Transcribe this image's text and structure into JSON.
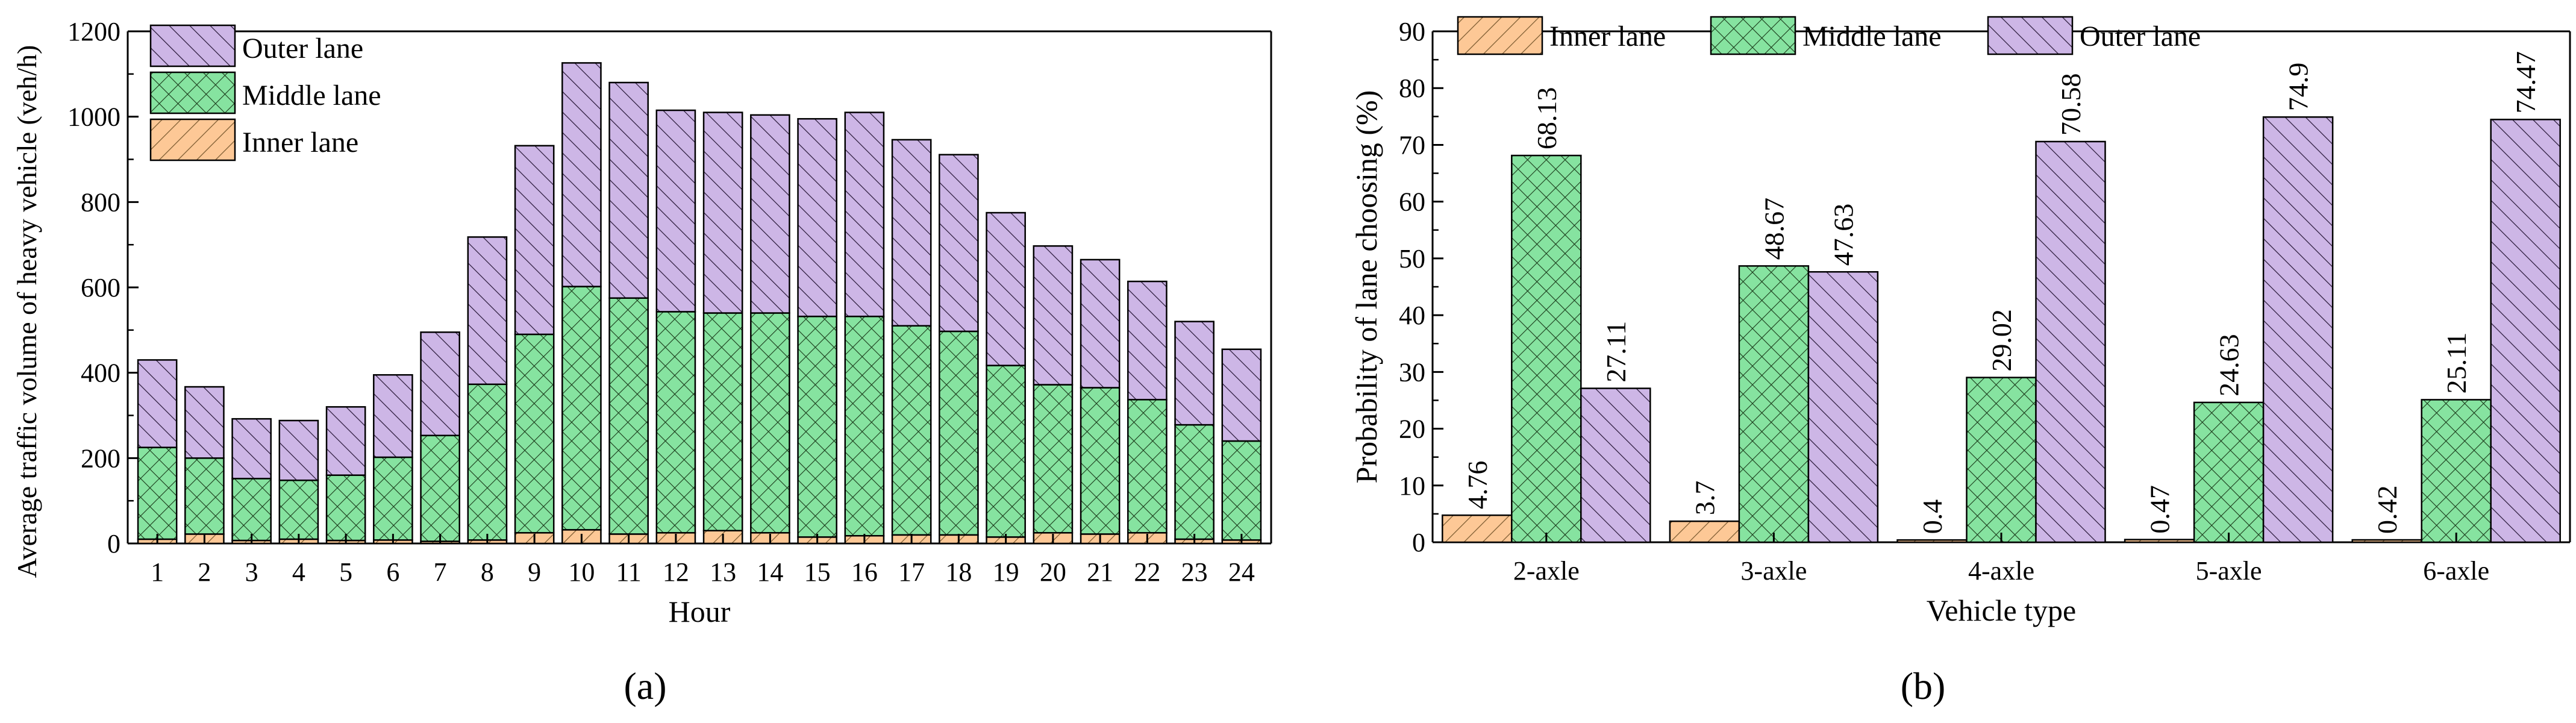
{
  "colors": {
    "inner": "#FDC896",
    "middle": "#86E3A0",
    "outer": "#CDB6E6",
    "stroke": "#000000",
    "axis": "#000000"
  },
  "chart_data": [
    {
      "type": "bar",
      "stacked": true,
      "panel_label": "(a)",
      "title": "",
      "xlabel": "Hour",
      "ylabel": "Average traffic volume of heavy vehicle (veh/h)",
      "ylim": [
        0,
        1200
      ],
      "yticks": [
        0,
        200,
        400,
        600,
        800,
        1000,
        1200
      ],
      "categories": [
        "1",
        "2",
        "3",
        "4",
        "5",
        "6",
        "7",
        "8",
        "9",
        "10",
        "11",
        "12",
        "13",
        "14",
        "15",
        "16",
        "17",
        "18",
        "19",
        "20",
        "21",
        "22",
        "23",
        "24"
      ],
      "legend_position": "top-left",
      "legend_order": [
        "Outer lane",
        "Middle lane",
        "Inner lane"
      ],
      "series": [
        {
          "name": "Inner lane",
          "key": "inner",
          "values": [
            10,
            22,
            7,
            10,
            7,
            8,
            5,
            8,
            25,
            32,
            22,
            25,
            30,
            25,
            15,
            18,
            20,
            20,
            15,
            25,
            22,
            25,
            10,
            8
          ]
        },
        {
          "name": "Middle lane",
          "key": "middle",
          "values": [
            215,
            178,
            145,
            138,
            153,
            194,
            248,
            365,
            465,
            570,
            553,
            518,
            510,
            515,
            517,
            514,
            490,
            477,
            402,
            347,
            343,
            312,
            268,
            232
          ]
        },
        {
          "name": "Outer lane",
          "key": "outer",
          "values": [
            205,
            167,
            140,
            140,
            160,
            193,
            242,
            345,
            442,
            524,
            505,
            472,
            470,
            464,
            463,
            478,
            436,
            414,
            358,
            325,
            300,
            277,
            242,
            215
          ]
        }
      ]
    },
    {
      "type": "bar",
      "stacked": false,
      "panel_label": "(b)",
      "title": "",
      "xlabel": "Vehicle type",
      "ylabel": "Probability of lane choosing (%)",
      "ylim": [
        0,
        90
      ],
      "yticks": [
        0,
        10,
        20,
        30,
        40,
        50,
        60,
        70,
        80,
        90
      ],
      "categories": [
        "2-axle",
        "3-axle",
        "4-axle",
        "5-axle",
        "6-axle"
      ],
      "legend_position": "top",
      "legend_order": [
        "Inner lane",
        "Middle lane",
        "Outer lane"
      ],
      "series": [
        {
          "name": "Inner lane",
          "key": "inner",
          "values": [
            4.76,
            3.7,
            0.4,
            0.47,
            0.42
          ],
          "labels": [
            "4.76",
            "3.7",
            "0.4",
            "0.47",
            "0.42"
          ]
        },
        {
          "name": "Middle lane",
          "key": "middle",
          "values": [
            68.13,
            48.67,
            29.02,
            24.63,
            25.11
          ],
          "labels": [
            "68.13",
            "48.67",
            "29.02",
            "24.63",
            "25.11"
          ]
        },
        {
          "name": "Outer lane",
          "key": "outer",
          "values": [
            27.11,
            47.63,
            70.58,
            74.9,
            74.47
          ],
          "labels": [
            "27.11",
            "47.63",
            "70.58",
            "74.9",
            "74.47"
          ]
        }
      ]
    }
  ]
}
